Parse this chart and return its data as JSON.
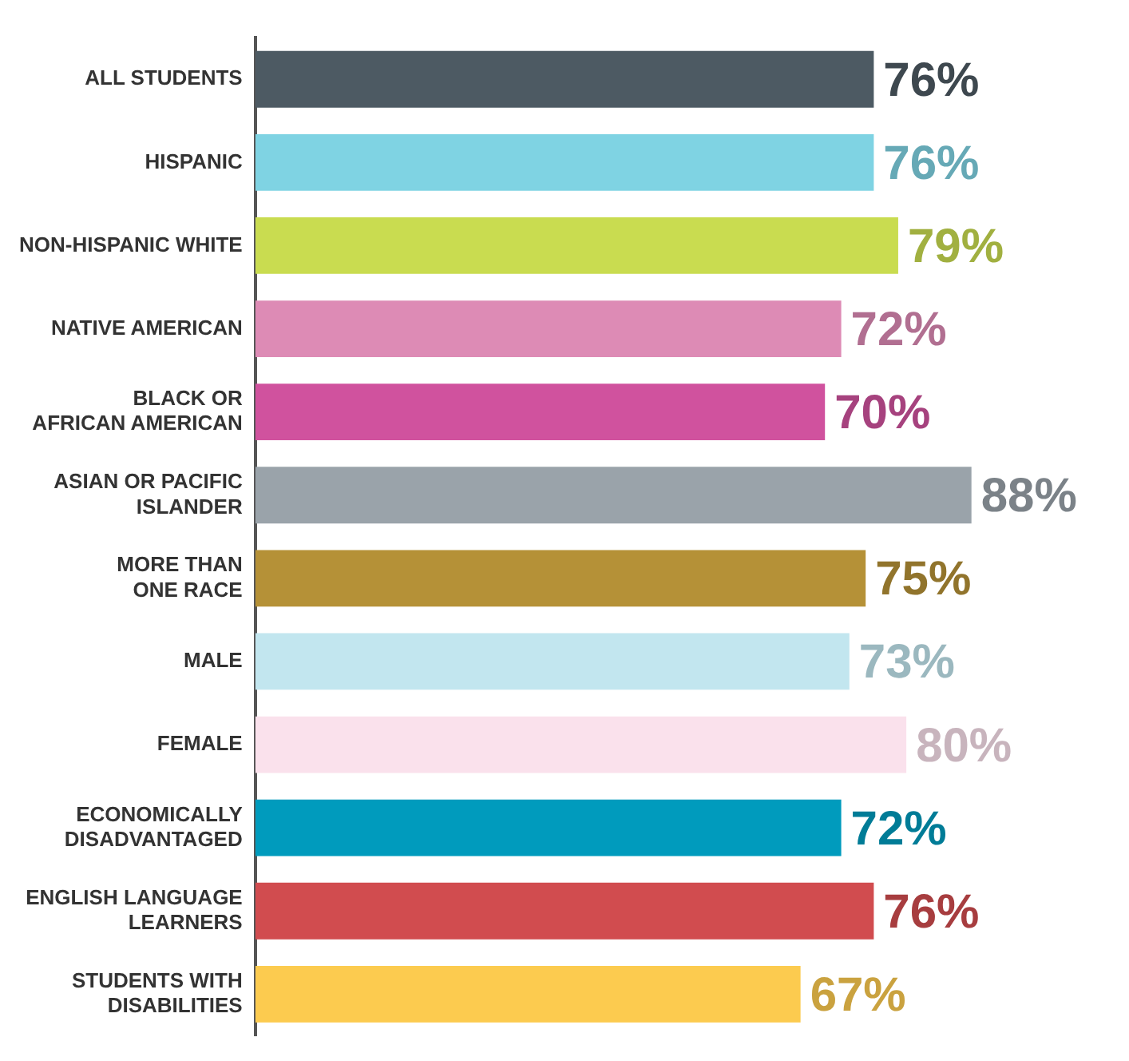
{
  "chart_data": {
    "type": "bar",
    "orientation": "horizontal",
    "categories": [
      "ALL STUDENTS",
      "HISPANIC",
      "NON-HISPANIC WHITE",
      "NATIVE AMERICAN",
      "BLACK OR\nAFRICAN AMERICAN",
      "ASIAN OR PACIFIC\nISLANDER",
      "MORE THAN\nONE RACE",
      "MALE",
      "FEMALE",
      "ECONOMICALLY\nDISADVANTAGED",
      "ENGLISH LANGUAGE\nLEARNERS",
      "STUDENTS WITH\nDISABILITIES"
    ],
    "values": [
      76,
      76,
      79,
      72,
      70,
      88,
      75,
      73,
      80,
      72,
      76,
      67
    ],
    "colors": [
      "#4d5a63",
      "#7fd3e3",
      "#c9dc50",
      "#dd8bb5",
      "#d0529e",
      "#9aa3aa",
      "#b59137",
      "#c2e6ef",
      "#fae1ec",
      "#009bbd",
      "#d14c4f",
      "#fccb4f"
    ],
    "value_labels": [
      "76%",
      "76%",
      "79%",
      "72%",
      "70%",
      "88%",
      "75%",
      "73%",
      "80%",
      "72%",
      "76%",
      "67%"
    ]
  }
}
